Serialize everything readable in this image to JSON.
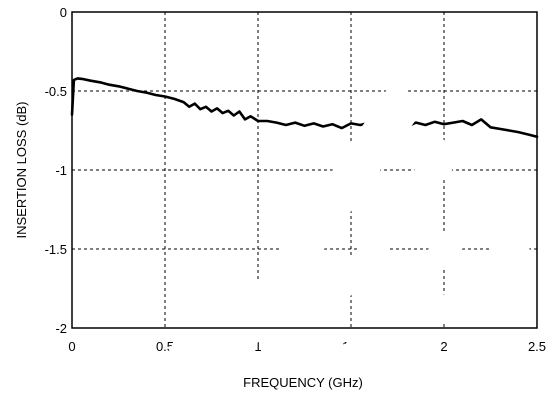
{
  "chart_data": {
    "type": "line",
    "title": "",
    "xlabel": "FREQUENCY (GHz)",
    "ylabel": "INSERTION LOSS (dB)",
    "xlim": [
      0,
      2.5
    ],
    "ylim": [
      -2,
      0
    ],
    "x_ticks": [
      0,
      0.5,
      1,
      1.5,
      2,
      2.5
    ],
    "x_tick_labels": [
      "0",
      "0.5",
      "1",
      "1.5",
      "2",
      "2.5"
    ],
    "y_ticks": [
      0,
      -0.5,
      -1,
      -1.5,
      -2
    ],
    "y_tick_labels": [
      "0",
      "-0.5",
      "-1",
      "-1.5",
      "-2"
    ],
    "grid": true,
    "grid_style": "dotted",
    "series": [
      {
        "color": "#000000",
        "x": [
          0,
          0.01,
          0.03,
          0.06,
          0.1,
          0.15,
          0.2,
          0.25,
          0.3,
          0.35,
          0.4,
          0.45,
          0.5,
          0.55,
          0.6,
          0.63,
          0.66,
          0.69,
          0.72,
          0.75,
          0.78,
          0.81,
          0.84,
          0.87,
          0.9,
          0.93,
          0.96,
          1.0,
          1.05,
          1.1,
          1.15,
          1.2,
          1.25,
          1.3,
          1.35,
          1.4,
          1.45,
          1.5,
          1.55,
          1.6,
          1.65,
          1.7,
          1.75,
          1.8,
          1.85,
          1.9,
          1.95,
          2.0,
          2.05,
          2.1,
          2.15,
          2.2,
          2.25,
          2.3,
          2.35,
          2.4,
          2.45,
          2.5
        ],
        "y": [
          -0.65,
          -0.43,
          -0.42,
          -0.425,
          -0.435,
          -0.445,
          -0.46,
          -0.47,
          -0.485,
          -0.5,
          -0.51,
          -0.525,
          -0.535,
          -0.55,
          -0.57,
          -0.6,
          -0.58,
          -0.615,
          -0.6,
          -0.63,
          -0.61,
          -0.64,
          -0.625,
          -0.655,
          -0.63,
          -0.68,
          -0.66,
          -0.69,
          -0.69,
          -0.7,
          -0.715,
          -0.7,
          -0.72,
          -0.705,
          -0.725,
          -0.71,
          -0.735,
          -0.705,
          -0.715,
          -0.7,
          -0.72,
          -0.715,
          -0.705,
          -0.725,
          -0.7,
          -0.715,
          -0.695,
          -0.71,
          -0.7,
          -0.69,
          -0.715,
          -0.68,
          -0.73,
          -0.74,
          -0.75,
          -0.76,
          -0.775,
          -0.79
        ]
      }
    ]
  },
  "watermark": {
    "color": "#ffffff"
  }
}
